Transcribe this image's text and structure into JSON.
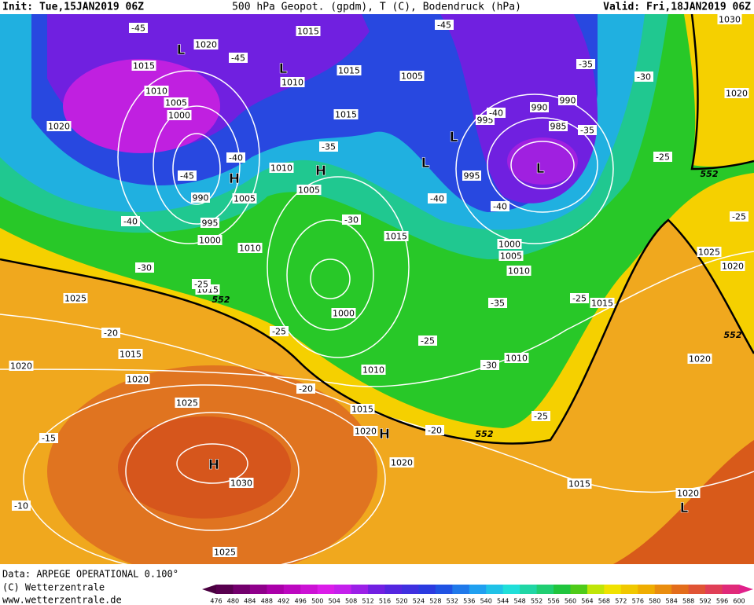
{
  "header": {
    "init": "Init: Tue,15JAN2019 06Z",
    "title": "500 hPa Geopot. (gpdm), T (C), Bodendruck (hPa)",
    "valid": "Valid: Fri,18JAN2019 06Z"
  },
  "footer": {
    "data": "Data: ARPEGE OPERATIONAL 0.100°",
    "copyright": "(C) Wetterzentrale",
    "url": "www.wetterzentrale.de"
  },
  "colorbar": {
    "labels": [
      476,
      480,
      484,
      488,
      492,
      496,
      500,
      504,
      508,
      512,
      516,
      520,
      524,
      528,
      532,
      536,
      540,
      544,
      548,
      552,
      556,
      560,
      564,
      568,
      572,
      576,
      580,
      584,
      588,
      592,
      596,
      600
    ]
  },
  "map": {
    "isobar_labels": [
      1015,
      1020,
      1015,
      1010,
      1005,
      1000,
      1020,
      1010,
      1015,
      1015,
      1005,
      990,
      990,
      985,
      995,
      995,
      1010,
      1005,
      1005,
      990,
      995,
      1000,
      1010,
      1015,
      1000,
      1005,
      1010,
      1015,
      1000,
      1025,
      1015,
      1020,
      1020,
      1010,
      1025,
      1015,
      1020,
      1030,
      1025,
      1020,
      1015,
      1020,
      1010,
      1015,
      1020,
      1025,
      1020,
      1020,
      1030
    ],
    "temperature_labels": [
      -45,
      -45,
      -45,
      -45,
      -40,
      -40,
      -40,
      -40,
      -40,
      -35,
      -35,
      -35,
      -30,
      -30,
      -30,
      -25,
      -25,
      -25,
      -25,
      -25,
      -25,
      -25,
      -20,
      -20,
      -20,
      -30,
      -35,
      -15,
      -10
    ],
    "pressure_centers": [
      "L",
      "L",
      "H",
      "H",
      "L",
      "L",
      "L",
      "H",
      "H",
      "L"
    ],
    "height_labels": [
      552,
      552,
      552,
      552
    ]
  }
}
